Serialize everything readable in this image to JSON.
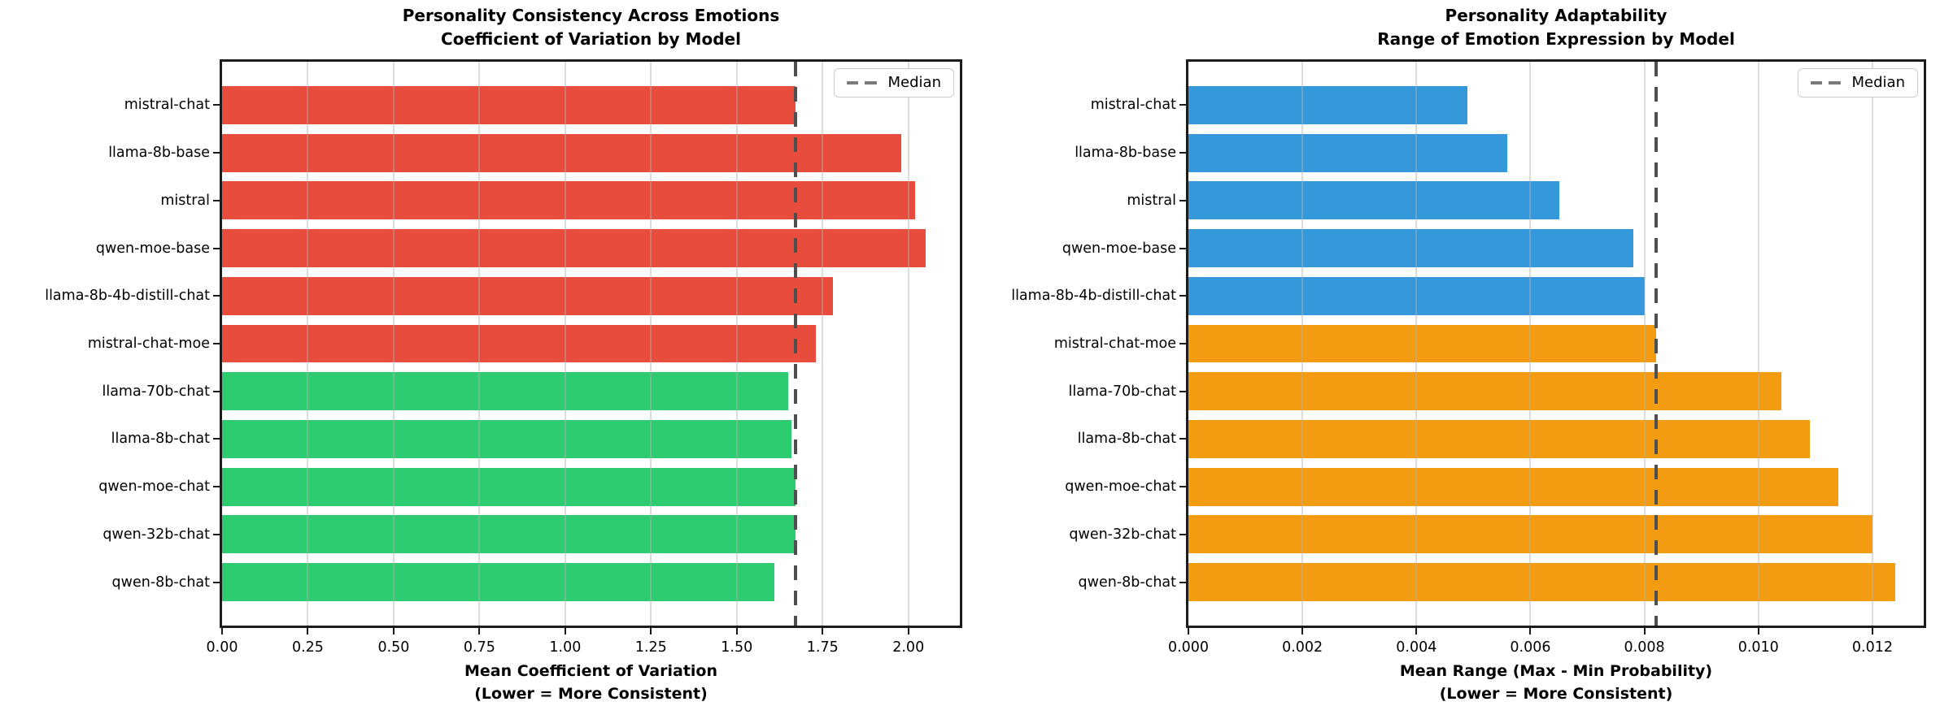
{
  "colors": {
    "red": "#e74c3c",
    "green": "#2ecc71",
    "blue": "#3498db",
    "orange": "#f39c12",
    "median_line": "#4f4f4f",
    "legend_dash": "#7a7a7a",
    "grid": "#b2b2b2",
    "spine": "#1c1c1c",
    "background": "#ffffff"
  },
  "chart_data": [
    {
      "type": "bar",
      "orientation": "horizontal",
      "title": [
        "Personality Consistency Across Emotions",
        "Coefficient of Variation by Model"
      ],
      "xlabel": [
        "Mean Coefficient of Variation",
        "(Lower = More Consistent)"
      ],
      "categories": [
        "mistral-chat",
        "llama-8b-base",
        "mistral",
        "qwen-moe-base",
        "llama-8b-4b-distill-chat",
        "mistral-chat-moe",
        "llama-70b-chat",
        "llama-8b-chat",
        "qwen-moe-chat",
        "qwen-32b-chat",
        "qwen-8b-chat"
      ],
      "values": [
        1.67,
        1.98,
        2.02,
        2.05,
        1.78,
        1.73,
        1.65,
        1.66,
        1.67,
        1.67,
        1.61
      ],
      "bar_colors": [
        "#e74c3c",
        "#e74c3c",
        "#e74c3c",
        "#e74c3c",
        "#e74c3c",
        "#e74c3c",
        "#2ecc71",
        "#2ecc71",
        "#2ecc71",
        "#2ecc71",
        "#2ecc71"
      ],
      "median": 1.67,
      "xlim": [
        0,
        2.15
      ],
      "xticks": [
        {
          "value": 0,
          "label": "0.00"
        },
        {
          "value": 0.25,
          "label": "0.25"
        },
        {
          "value": 0.5,
          "label": "0.50"
        },
        {
          "value": 0.75,
          "label": "0.75"
        },
        {
          "value": 1.0,
          "label": "1.00"
        },
        {
          "value": 1.25,
          "label": "1.25"
        },
        {
          "value": 1.5,
          "label": "1.50"
        },
        {
          "value": 1.75,
          "label": "1.75"
        },
        {
          "value": 2.0,
          "label": "2.00"
        }
      ],
      "legend": {
        "label": "Median",
        "position": "upper right"
      },
      "grid": {
        "axis": "x"
      }
    },
    {
      "type": "bar",
      "orientation": "horizontal",
      "title": [
        "Personality Adaptability",
        "Range of Emotion Expression by Model"
      ],
      "xlabel": [
        "Mean Range (Max - Min Probability)",
        "(Lower = More Consistent)"
      ],
      "categories": [
        "mistral-chat",
        "llama-8b-base",
        "mistral",
        "qwen-moe-base",
        "llama-8b-4b-distill-chat",
        "mistral-chat-moe",
        "llama-70b-chat",
        "llama-8b-chat",
        "qwen-moe-chat",
        "qwen-32b-chat",
        "qwen-8b-chat"
      ],
      "values": [
        0.0049,
        0.0056,
        0.0065,
        0.0078,
        0.008,
        0.0082,
        0.0104,
        0.0109,
        0.0114,
        0.012,
        0.0124
      ],
      "bar_colors": [
        "#3498db",
        "#3498db",
        "#3498db",
        "#3498db",
        "#3498db",
        "#f39c12",
        "#f39c12",
        "#f39c12",
        "#f39c12",
        "#f39c12",
        "#f39c12"
      ],
      "median": 0.0082,
      "xlim": [
        0,
        0.0129
      ],
      "xticks": [
        {
          "value": 0,
          "label": "0.000"
        },
        {
          "value": 0.002,
          "label": "0.002"
        },
        {
          "value": 0.004,
          "label": "0.004"
        },
        {
          "value": 0.006,
          "label": "0.006"
        },
        {
          "value": 0.008,
          "label": "0.008"
        },
        {
          "value": 0.01,
          "label": "0.010"
        },
        {
          "value": 0.012,
          "label": "0.012"
        }
      ],
      "legend": {
        "label": "Median",
        "position": "upper right"
      },
      "grid": {
        "axis": "x"
      }
    }
  ]
}
